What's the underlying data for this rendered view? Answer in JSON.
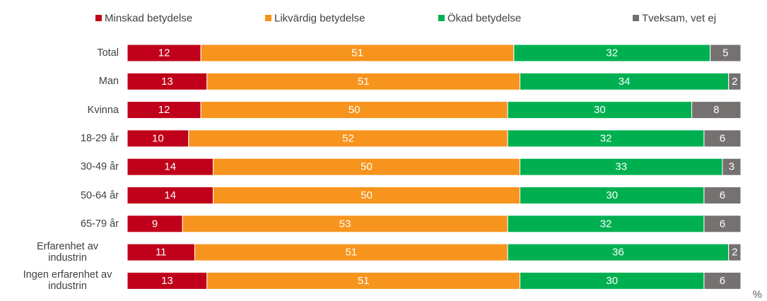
{
  "chart_data": {
    "type": "stacked_bar_horizontal",
    "categories": [
      "Total",
      "Man",
      "Kvinna",
      "18-29 år",
      "30-49 år",
      "50-64 år",
      "65-79 år",
      "Erfarenhet av industrin",
      "Ingen erfarenhet av industrin"
    ],
    "series": [
      {
        "name": "Minskad betydelse",
        "color": "#c0001a",
        "values": [
          12,
          13,
          12,
          10,
          14,
          14,
          9,
          11,
          13
        ]
      },
      {
        "name": "Likvärdig betydelse",
        "color": "#f7941d",
        "values": [
          51,
          51,
          50,
          52,
          50,
          50,
          53,
          51,
          51
        ]
      },
      {
        "name": "Ökad betydelse",
        "color": "#00b050",
        "values": [
          32,
          34,
          30,
          32,
          33,
          30,
          32,
          36,
          30
        ]
      },
      {
        "name": "Tveksam, vet ej",
        "color": "#767171",
        "values": [
          5,
          2,
          8,
          6,
          3,
          6,
          6,
          2,
          6
        ]
      }
    ],
    "xlim": [
      0,
      100
    ],
    "x_label": "%",
    "legend": "top"
  }
}
